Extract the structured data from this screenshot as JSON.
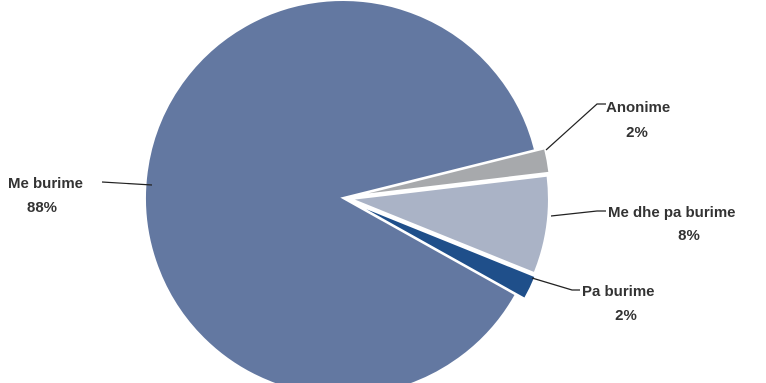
{
  "chart_data": {
    "type": "pie",
    "slices": [
      {
        "name": "Me burime",
        "value": 88,
        "label": "88%",
        "color": "#6378a1"
      },
      {
        "name": "Anonime",
        "value": 2,
        "label": "2%",
        "color": "#a7a9ac"
      },
      {
        "name": "Me dhe pa burime",
        "value": 8,
        "label": "8%",
        "color": "#aab3c6"
      },
      {
        "name": "Pa burime",
        "value": 2,
        "label": "2%",
        "color": "#1f4f8a"
      }
    ],
    "title": "",
    "legend": "none"
  }
}
